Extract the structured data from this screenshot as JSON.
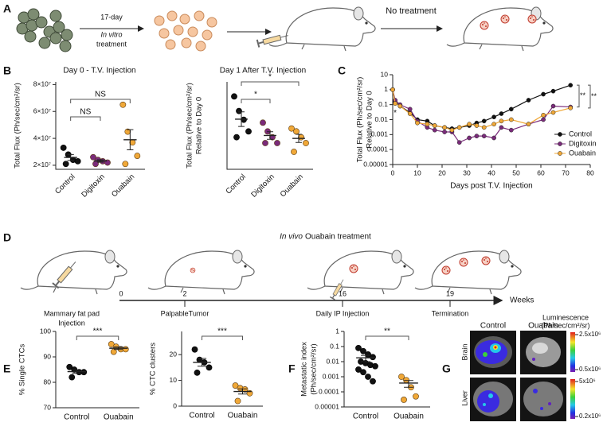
{
  "panels": [
    "A",
    "B",
    "C",
    "D",
    "E",
    "F",
    "G"
  ],
  "schematic_a": {
    "step1": [
      "17-day",
      "In vitro",
      "treatment"
    ],
    "step2": "No treatment"
  },
  "schematic_d": {
    "title_italic": "In vivo",
    "title": "Ouabain treatment",
    "unit": "Weeks",
    "events": [
      {
        "week": "0",
        "label": [
          "Mammary fat pad",
          "Injection"
        ]
      },
      {
        "week": "2",
        "label": [
          "PalpableTumor"
        ]
      },
      {
        "week": "16",
        "label": [
          "Daily IP Injection"
        ]
      },
      {
        "week": "19",
        "label": [
          "Termination"
        ]
      }
    ]
  },
  "panel_g": {
    "columns": [
      "Control",
      "Ouabain"
    ],
    "rows": [
      "Brain",
      "Liver"
    ],
    "scale_title": [
      "Luminescence",
      "(Ph/sec/cm²/sr)"
    ],
    "brain_scale": [
      "2.5x10⁶",
      "0.5x10⁶"
    ],
    "liver_scale": [
      "5x10⁶",
      "0.2x10⁶"
    ]
  },
  "chart_data": [
    {
      "type": "dot",
      "title": "Day 0 - T.V. Injection",
      "ylabel": [
        "Total Flux (Ph/sec/cm²/sr)"
      ],
      "categories": [
        "Control",
        "Digitoxin",
        "Ouabain"
      ],
      "colors": [
        "#111111",
        "#7a2b7a",
        "#f0a838"
      ],
      "points": [
        [
          33000000,
          28000000,
          24000000,
          23000000,
          21000000
        ],
        [
          26000000,
          24000000,
          23000000,
          22000000,
          21000000
        ],
        [
          65000000,
          45000000,
          37000000,
          27000000,
          21000000
        ]
      ],
      "mean": [
        25800000,
        23200000,
        39000000
      ],
      "sem": [
        2200000,
        900000,
        7500000
      ],
      "ylim": [
        17000000,
        82000000
      ],
      "yticks": [
        {
          "value": 20000000,
          "label": "2×10⁷"
        },
        {
          "value": 40000000,
          "label": "4×10⁷"
        },
        {
          "value": 60000000,
          "label": "6×10⁷"
        },
        {
          "value": 80000000,
          "label": "8×10⁷"
        }
      ],
      "comparisons": [
        {
          "between": [
            "Control",
            "Digitoxin"
          ],
          "label": "NS"
        },
        {
          "between": [
            "Control",
            "Ouabain"
          ],
          "label": "NS"
        }
      ]
    },
    {
      "type": "dot",
      "title": "Day 1 After T.V. Injection",
      "ylabel": [
        "Total Flux (Ph/sec/cm²/sr)",
        "Relative to Day 0"
      ],
      "categories": [
        "Control",
        "Digitoxin",
        "Ouabain"
      ],
      "colors": [
        "#111111",
        "#7a2b7a",
        "#f0a838"
      ],
      "points": [
        [
          0.25,
          0.2,
          0.17,
          0.13,
          0.11
        ],
        [
          0.16,
          0.13,
          0.11,
          0.09,
          0.09
        ],
        [
          0.14,
          0.13,
          0.11,
          0.09,
          0.06
        ]
      ],
      "mean": [
        0.172,
        0.116,
        0.106
      ],
      "sem": [
        0.025,
        0.013,
        0.014
      ],
      "ylim": [
        0,
        0.3
      ],
      "comparisons": [
        {
          "between": [
            "Control",
            "Digitoxin"
          ],
          "label": "*"
        },
        {
          "between": [
            "Control",
            "Ouabain"
          ],
          "label": "*"
        }
      ]
    },
    {
      "type": "line",
      "ylabel": [
        "Total Flux (Ph/sec/cm²/sr)",
        "Relative to Day 0"
      ],
      "xlabel": "Days post T.V. Injection",
      "x": [
        0,
        1,
        3,
        7,
        10,
        14,
        17,
        21,
        24,
        27,
        31,
        34,
        37,
        41,
        44,
        48,
        55,
        61,
        65,
        72
      ],
      "series": [
        {
          "name": "Control",
          "color": "#111111",
          "values": [
            1,
            0.15,
            0.08,
            0.03,
            0.01,
            0.008,
            0.004,
            0.003,
            0.0025,
            0.003,
            0.004,
            0.006,
            0.008,
            0.015,
            0.025,
            0.05,
            0.2,
            0.5,
            0.8,
            2
          ]
        },
        {
          "name": "Digitoxin",
          "color": "#7a2b7a",
          "values": [
            1,
            0.2,
            0.1,
            0.05,
            0.008,
            0.003,
            0.002,
            0.0015,
            0.0015,
            0.0003,
            0.0006,
            0.0008,
            0.0008,
            0.0006,
            0.003,
            0.002,
            0.005,
            0.01,
            0.08,
            0.07
          ]
        },
        {
          "name": "Ouabain",
          "color": "#f0a838",
          "values": [
            1,
            0.12,
            0.08,
            0.025,
            0.006,
            0.005,
            0.004,
            0.003,
            0.002,
            0.003,
            0.005,
            0.004,
            0.003,
            0.005,
            0.008,
            0.01,
            0.005,
            0.02,
            0.03,
            0.06
          ]
        }
      ],
      "xlim": [
        0,
        80
      ],
      "xticks": [
        0,
        10,
        20,
        30,
        40,
        50,
        60,
        70,
        80
      ],
      "ylim": [
        1e-05,
        10
      ],
      "log_y": true,
      "yticks": [
        1e-05,
        0.0001,
        0.001,
        0.01,
        0.1,
        1,
        10
      ],
      "legend": "lower right",
      "annotations": [
        "*"
      ],
      "comparisons": [
        {
          "between": [
            "Control",
            "Digitoxin"
          ],
          "label": "**"
        },
        {
          "between": [
            "Control",
            "Ouabain"
          ],
          "label": "**"
        }
      ]
    },
    {
      "type": "dot",
      "ylabel": [
        "% Single CTCs"
      ],
      "categories": [
        "Control",
        "Ouabain"
      ],
      "colors": [
        "#111111",
        "#f0a838"
      ],
      "points": [
        [
          86,
          85,
          84,
          84,
          82
        ],
        [
          95,
          94,
          93,
          93,
          92
        ]
      ],
      "mean": [
        84.2,
        93.4
      ],
      "sem": [
        0.7,
        0.5
      ],
      "ylim": [
        70,
        100
      ],
      "yticks": [
        70,
        80,
        90,
        100
      ],
      "comparisons": [
        {
          "between": [
            "Control",
            "Ouabain"
          ],
          "label": "***"
        }
      ]
    },
    {
      "type": "dot",
      "ylabel": [
        "% CTC clusters"
      ],
      "categories": [
        "Control",
        "Ouabain"
      ],
      "colors": [
        "#111111",
        "#f0a838"
      ],
      "points": [
        [
          22,
          18,
          17,
          15,
          13
        ],
        [
          8,
          7,
          6.5,
          5,
          2
        ]
      ],
      "mean": [
        17,
        5.7
      ],
      "sem": [
        1.5,
        1.0
      ],
      "ylim": [
        0,
        29
      ],
      "yticks": [
        0,
        10,
        20
      ],
      "comparisons": [
        {
          "between": [
            "Control",
            "Ouabain"
          ],
          "label": "***"
        }
      ]
    },
    {
      "type": "dot",
      "ylabel": [
        "Metastatic index",
        "(Ph/sec/cm²/sr)"
      ],
      "categories": [
        "Control",
        "Ouabain"
      ],
      "colors": [
        "#111111",
        "#f0a838"
      ],
      "points": [
        [
          0.08,
          0.05,
          0.03,
          0.02,
          0.01,
          0.008,
          0.006,
          0.005,
          0.003,
          0.002,
          0.001,
          0.0005
        ],
        [
          0.001,
          0.0006,
          0.0002,
          5e-05,
          3e-05
        ]
      ],
      "mean": [
        0.018,
        0.00038
      ],
      "sem": [
        0.008,
        0.00018
      ],
      "ylim": [
        1e-05,
        1
      ],
      "log_y": true,
      "yticks": [
        1e-05,
        0.0001,
        0.001,
        0.01,
        0.1,
        1
      ],
      "comparisons": [
        {
          "between": [
            "Control",
            "Ouabain"
          ],
          "label": "**"
        }
      ]
    }
  ]
}
